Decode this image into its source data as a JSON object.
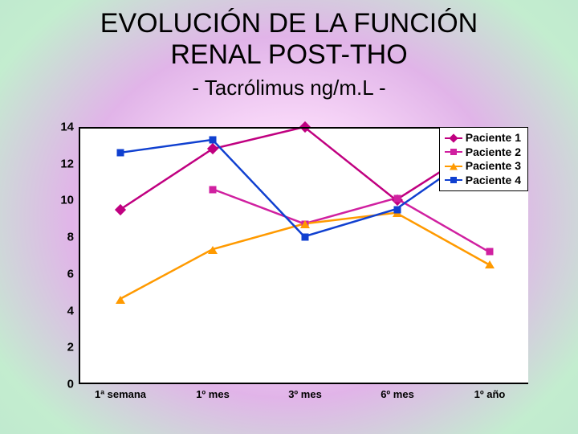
{
  "title_line1": "EVOLUCIÓN DE LA FUNCIÓN",
  "title_line2": "RENAL POST-THO",
  "subtitle": "- Tacrólimus ng/m.L -",
  "chart": {
    "type": "line",
    "background": "#ffffff",
    "axis_color": "#000000",
    "grid_color": "#000000",
    "ylim": [
      0,
      14
    ],
    "ytick_step": 2,
    "yticks": [
      0,
      2,
      4,
      6,
      8,
      10,
      12,
      14
    ],
    "categories": [
      "1ª semana",
      "1º mes",
      "3º mes",
      "6º mes",
      "1º año"
    ],
    "tick_fontsize": 15,
    "tick_fontweight": "bold",
    "line_width": 2.5,
    "marker_size": 10,
    "series": [
      {
        "name": "Paciente 1",
        "color": "#c00080",
        "marker": "diamond",
        "values": [
          9.5,
          12.8,
          14.0,
          10.0,
          13.2
        ]
      },
      {
        "name": "Paciente 2",
        "color": "#d020a0",
        "marker": "square",
        "values": [
          null,
          10.6,
          8.7,
          10.1,
          7.2
        ]
      },
      {
        "name": "Paciente 3",
        "color": "#ff9a00",
        "marker": "triangle",
        "values": [
          4.6,
          7.3,
          8.7,
          9.3,
          6.5
        ]
      },
      {
        "name": "Paciente 4",
        "color": "#1040d0",
        "marker": "square",
        "values": [
          12.6,
          13.3,
          8.0,
          9.5,
          13.0
        ]
      }
    ],
    "legend": {
      "position": "top-right",
      "border": "#000000",
      "background": "#ffffff",
      "fontsize": 14,
      "fontweight": "bold"
    }
  }
}
